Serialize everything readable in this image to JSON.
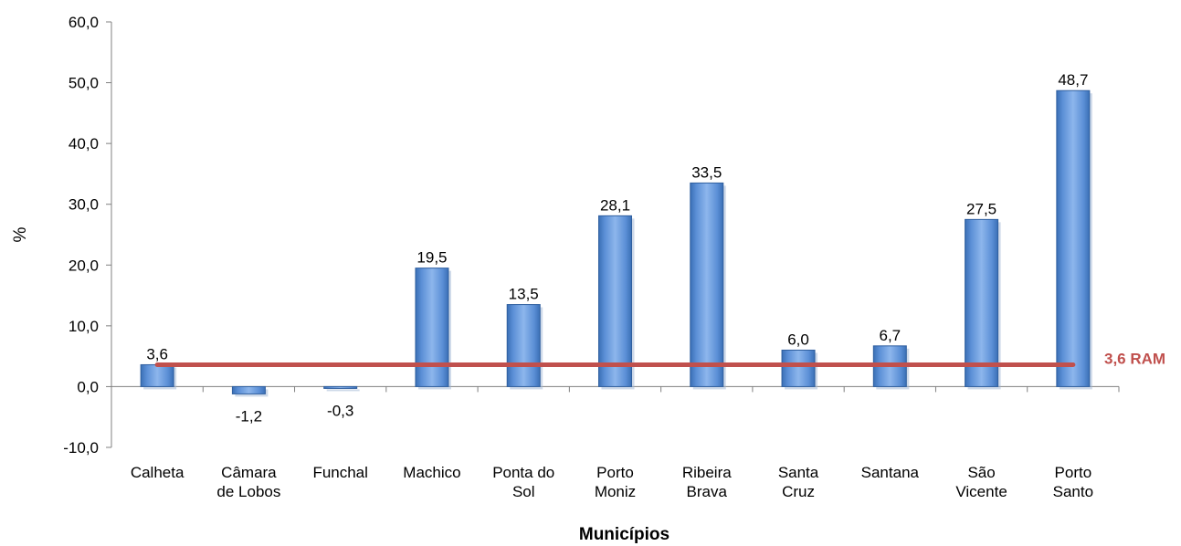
{
  "chart_data": {
    "type": "bar",
    "categories": [
      [
        "Calheta"
      ],
      [
        "Câmara",
        "de Lobos"
      ],
      [
        "Funchal"
      ],
      [
        "Machico"
      ],
      [
        "Ponta do",
        "Sol"
      ],
      [
        "Porto",
        "Moniz"
      ],
      [
        "Ribeira",
        "Brava"
      ],
      [
        "Santa",
        "Cruz"
      ],
      [
        "Santana"
      ],
      [
        "São",
        "Vicente"
      ],
      [
        "Porto",
        "Santo"
      ]
    ],
    "values": [
      3.6,
      -1.2,
      -0.3,
      19.5,
      13.5,
      28.1,
      33.5,
      6.0,
      6.7,
      27.5,
      48.7
    ],
    "data_labels": [
      "3,6",
      "-1,2",
      "-0,3",
      "19,5",
      "13,5",
      "28,1",
      "33,5",
      "6,0",
      "6,7",
      "27,5",
      "48,7"
    ],
    "ylim": [
      -10,
      60
    ],
    "yticks": [
      -10,
      0,
      10,
      20,
      30,
      40,
      50,
      60
    ],
    "ytick_labels": [
      "-10,0",
      "0,0",
      "10,0",
      "20,0",
      "30,0",
      "40,0",
      "50,0",
      "60,0"
    ],
    "xlabel": "Municípios",
    "ylabel": "%",
    "reference_line": {
      "value": 3.6,
      "label": "3,6 RAM",
      "color": "#c0504d"
    },
    "bar_color": "#4f81bd",
    "grid": false
  }
}
